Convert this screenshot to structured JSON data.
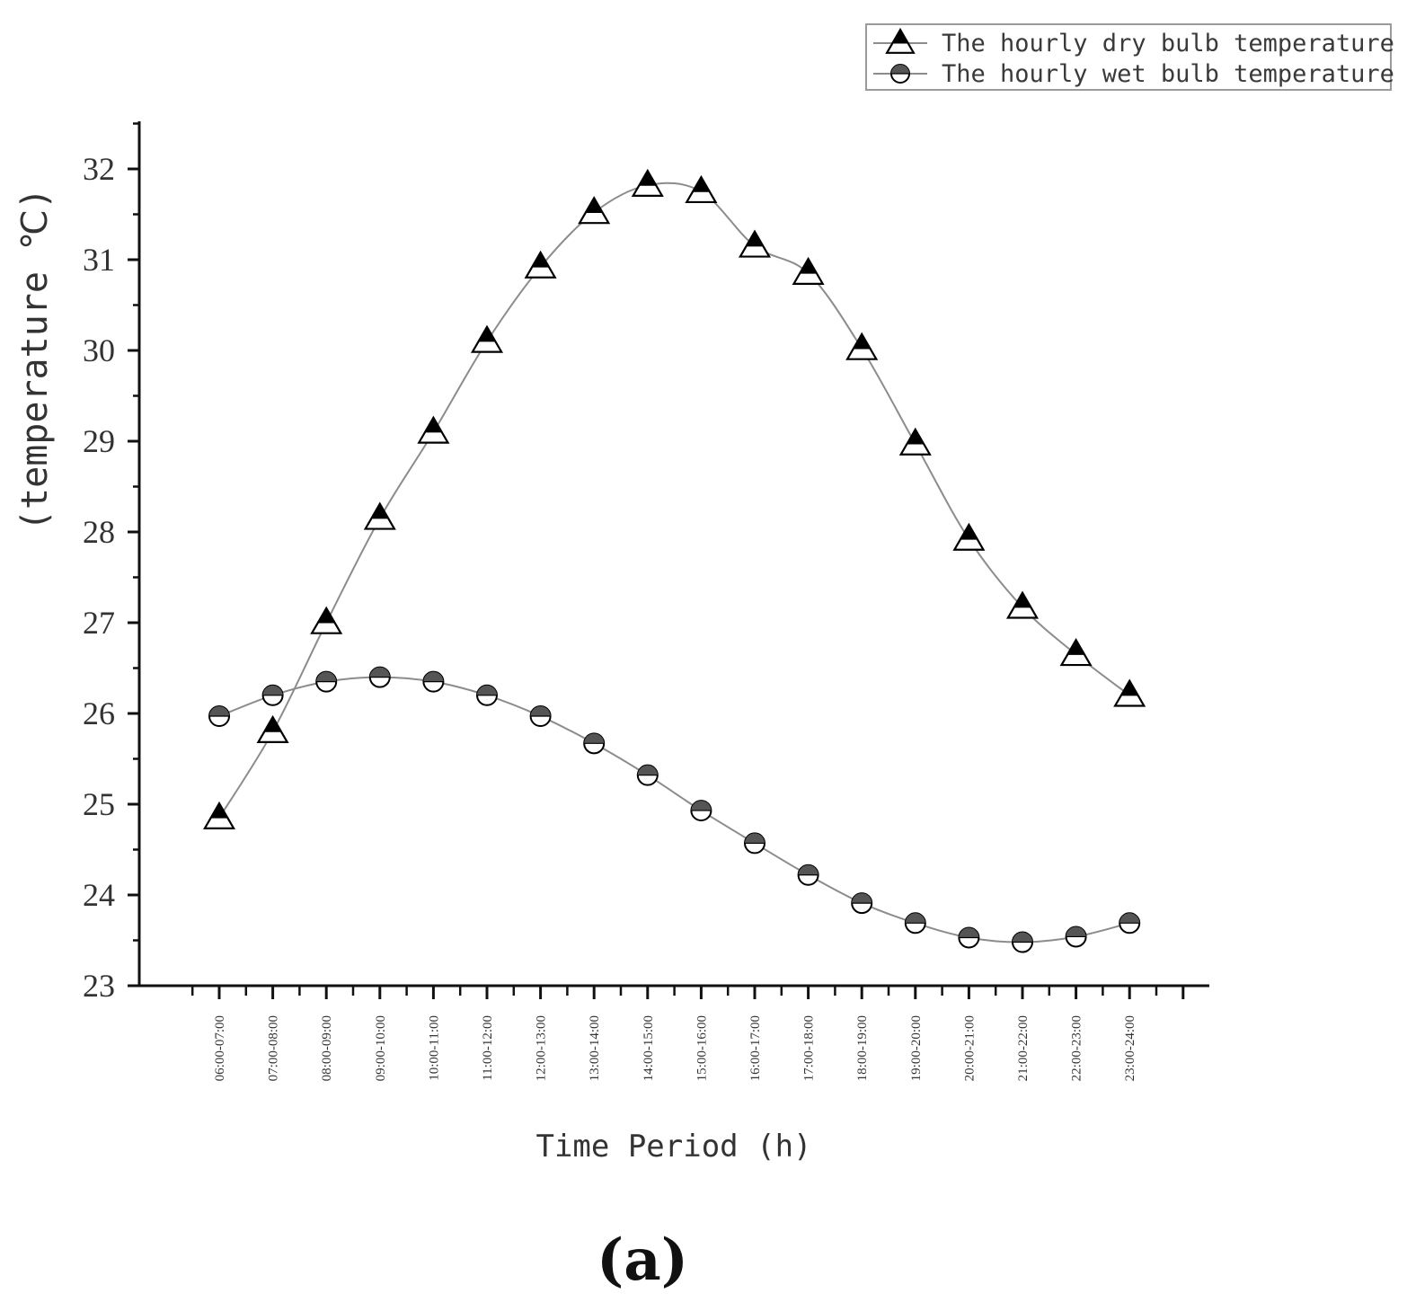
{
  "chart_data": {
    "type": "line",
    "title": "",
    "xlabel": "Time Period (h)",
    "ylabel": "(temperature ℃)",
    "ylim": [
      23,
      32.5
    ],
    "yticks": [
      23,
      24,
      25,
      26,
      27,
      28,
      29,
      30,
      31,
      32
    ],
    "grid": false,
    "legend_position": "top-right",
    "categories": [
      "06:00-07:00",
      "07:00-08:00",
      "08:00-09:00",
      "09:00-10:00",
      "10:00-11:00",
      "11:00-12:00",
      "12:00-13:00",
      "13:00-14:00",
      "14:00-15:00",
      "15:00-16:00",
      "16:00-17:00",
      "17:00-18:00",
      "18:00-19:00",
      "19:00-20:00",
      "20:00-21:00",
      "21:00-22:00",
      "22:00-23:00",
      "23:00-24:00"
    ],
    "series": [
      {
        "name": "The hourly dry bulb temperature",
        "marker": "triangle",
        "values": [
          24.85,
          25.8,
          27.0,
          28.15,
          29.1,
          30.1,
          30.92,
          31.52,
          31.82,
          31.75,
          31.15,
          30.85,
          30.02,
          28.97,
          27.92,
          27.17,
          26.65,
          26.2
        ]
      },
      {
        "name": "The hourly wet bulb temperature",
        "marker": "half-filled-circle",
        "values": [
          25.97,
          26.2,
          26.35,
          26.4,
          26.35,
          26.2,
          25.97,
          25.67,
          25.32,
          24.93,
          24.57,
          24.22,
          23.91,
          23.69,
          23.53,
          23.48,
          23.54,
          23.69
        ]
      }
    ],
    "colors": {
      "line": "#8c8c8c",
      "marker_fill": "#000000",
      "marker_open": "#ffffff",
      "axis": "#111111"
    }
  },
  "panel_label": "(a)"
}
